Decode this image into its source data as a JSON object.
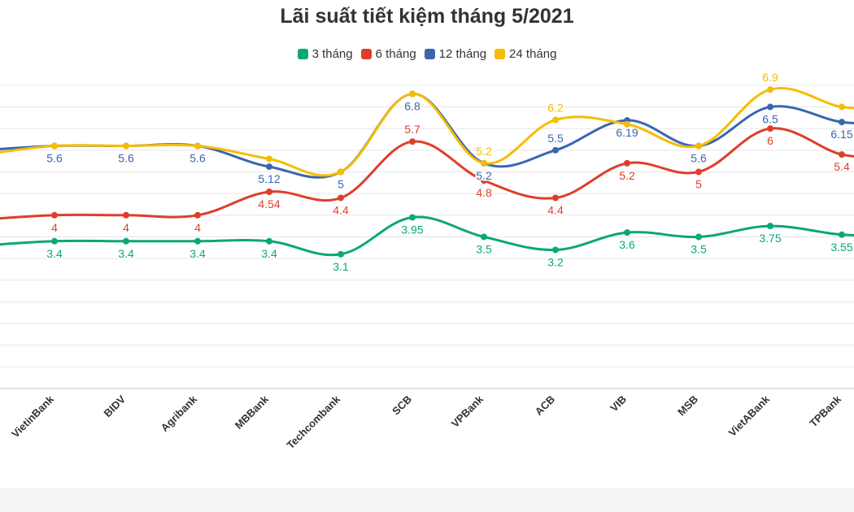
{
  "chart_data": {
    "type": "line",
    "title": "Lãi suất tiết kiệm tháng 5/2021",
    "categories": [
      "VietinBank",
      "BIDV",
      "Agribank",
      "MBBank",
      "Techcombank",
      "SCB",
      "VPBank",
      "ACB",
      "VIB",
      "MSB",
      "VietABank",
      "TPBank"
    ],
    "series": [
      {
        "name": "3 tháng",
        "color": "#0ba77a",
        "values": [
          3.4,
          3.4,
          3.4,
          3.4,
          3.1,
          3.95,
          3.5,
          3.2,
          3.6,
          3.5,
          3.75,
          3.55
        ],
        "left_partial": 3.3,
        "labels_below": [
          true,
          true,
          true,
          true,
          true,
          true,
          true,
          true,
          true,
          true,
          true,
          true
        ]
      },
      {
        "name": "6 tháng",
        "color": "#de3e2b",
        "values": [
          4,
          4,
          4,
          4.54,
          4.4,
          5.7,
          4.8,
          4.4,
          5.2,
          5,
          6,
          5.4
        ],
        "left_partial": 3.9,
        "labels_below": [
          true,
          true,
          true,
          true,
          true,
          false,
          true,
          true,
          true,
          true,
          true,
          true
        ]
      },
      {
        "name": "12 tháng",
        "color": "#3a66b0",
        "values": [
          5.6,
          5.6,
          5.6,
          5.12,
          5,
          6.8,
          5.2,
          5.5,
          6.19,
          5.6,
          6.5,
          6.15
        ],
        "left_partial": 5.5,
        "labels_below": [
          true,
          true,
          true,
          true,
          true,
          true,
          true,
          false,
          true,
          true,
          true,
          true
        ]
      },
      {
        "name": "24 tháng",
        "color": "#f5bd00",
        "values": [
          5.6,
          5.6,
          5.6,
          5.3,
          5,
          6.8,
          5.2,
          6.2,
          6.1,
          5.6,
          6.9,
          6.5
        ],
        "left_partial": 5.4,
        "labels_below": [
          false,
          false,
          false,
          false,
          false,
          false,
          false,
          false,
          false,
          false,
          false,
          false
        ],
        "show_labels": [
          false,
          false,
          false,
          false,
          false,
          false,
          true,
          true,
          false,
          false,
          true,
          false
        ]
      }
    ],
    "ylim": [
      0,
      7
    ],
    "grid": true,
    "legend_position": "top-center",
    "xlabel": "",
    "ylabel": ""
  }
}
